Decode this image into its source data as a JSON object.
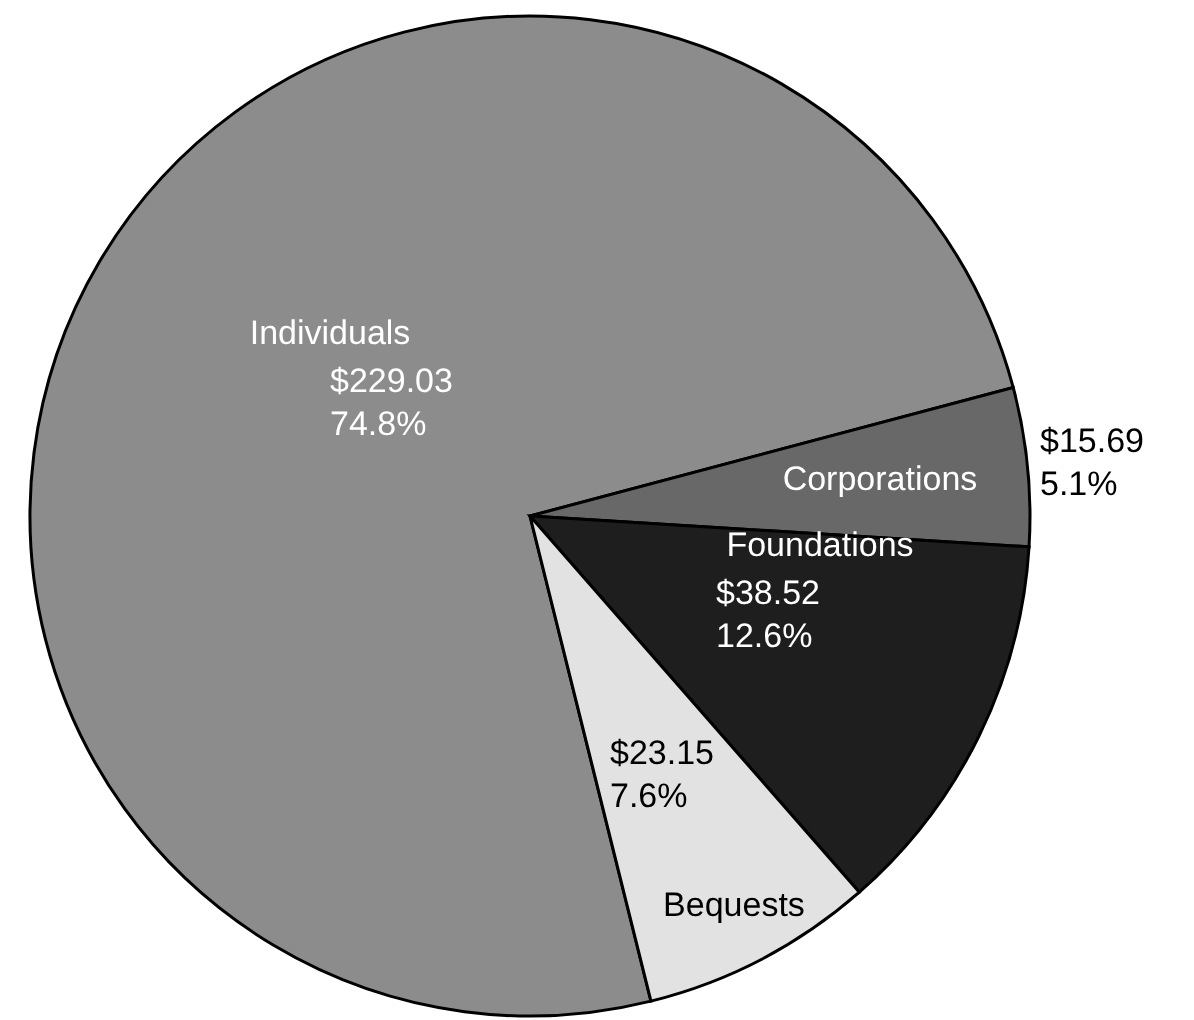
{
  "chart_data": {
    "type": "pie",
    "categories": [
      "Individuals",
      "Corporations",
      "Foundations",
      "Bequests"
    ],
    "values": [
      229.03,
      15.69,
      38.52,
      23.15
    ],
    "colors": [
      "#8c8c8c",
      "#686868",
      "#1e1e1e",
      "#e2e2e2"
    ],
    "value_labels": [
      "$229.03\n74.8%",
      "$15.69\n5.1%",
      "$38.52\n12.6%",
      "$23.15\n7.6%"
    ]
  }
}
